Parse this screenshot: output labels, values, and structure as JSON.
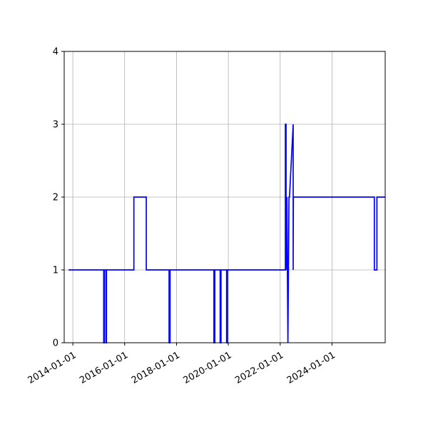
{
  "chart_data": {
    "type": "line",
    "title": "",
    "xlabel": "",
    "ylabel": "",
    "grid": true,
    "series": [
      {
        "color": "#0000ff",
        "x": [
          "2013-11-01",
          "2015-03-12",
          "2015-03-12",
          "2015-03-20",
          "2015-03-20",
          "2015-04-12",
          "2015-04-12",
          "2015-04-20",
          "2015-04-20",
          "2016-05-10",
          "2016-05-10",
          "2016-11-01",
          "2016-11-01",
          "2017-09-18",
          "2017-09-18",
          "2017-10-02",
          "2017-10-02",
          "2019-06-12",
          "2019-06-12",
          "2019-06-25",
          "2019-06-25",
          "2019-09-08",
          "2019-09-08",
          "2019-09-20",
          "2019-09-20",
          "2019-12-08",
          "2019-12-08",
          "2019-12-20",
          "2019-12-20",
          "2022-03-15",
          "2022-03-15",
          "2022-03-25",
          "2022-03-25",
          "2022-04-05",
          "2022-04-05",
          "2022-04-20",
          "2022-04-20",
          "2022-05-05",
          "2022-05-05",
          "2022-05-12",
          "2022-05-12",
          "2022-07-03",
          "2022-07-03",
          "2022-07-06",
          "2022-07-06",
          "2025-08-20",
          "2025-08-20",
          "2025-09-25",
          "2025-09-25",
          "2026-01-20"
        ],
        "values": [
          1,
          1,
          0,
          0,
          1,
          1,
          0,
          0,
          1,
          1,
          2,
          2,
          1,
          1,
          0,
          0,
          1,
          1,
          0,
          0,
          1,
          1,
          0,
          0,
          1,
          1,
          0,
          0,
          1,
          1,
          3,
          3,
          1,
          2,
          2,
          0,
          0,
          2,
          2,
          2,
          2,
          3,
          1,
          2,
          2,
          2,
          1,
          1,
          2,
          2
        ]
      }
    ],
    "xlim": [
      "2013-09-01",
      "2026-01-20"
    ],
    "ylim": [
      0,
      4
    ],
    "xticks": [
      "2014-01-01",
      "2016-01-01",
      "2018-01-01",
      "2020-01-01",
      "2022-01-01",
      "2024-01-01"
    ],
    "yticks": [
      0,
      1,
      2,
      3,
      4
    ]
  }
}
